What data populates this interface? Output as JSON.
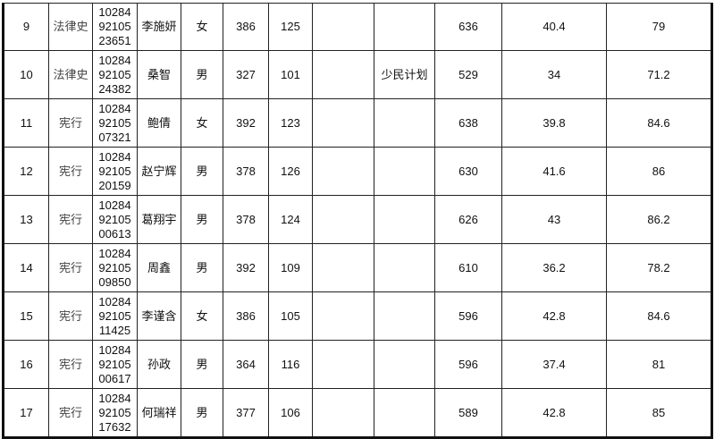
{
  "rows": [
    {
      "no": "9",
      "major": "法律史",
      "id": [
        "10284",
        "92105",
        "23651"
      ],
      "name": "李施妍",
      "gender": "女",
      "score1": "386",
      "score2": "125",
      "blank": "",
      "plan": "",
      "total": "636",
      "c1": "40.4",
      "c2": "79"
    },
    {
      "no": "10",
      "major": "法律史",
      "id": [
        "10284",
        "92105",
        "24382"
      ],
      "name": "桑智",
      "gender": "男",
      "score1": "327",
      "score2": "101",
      "blank": "",
      "plan": "少民计划",
      "total": "529",
      "c1": "34",
      "c2": "71.2"
    },
    {
      "no": "11",
      "major": "宪行",
      "id": [
        "10284",
        "92105",
        "07321"
      ],
      "name": "鲍倩",
      "gender": "女",
      "score1": "392",
      "score2": "123",
      "blank": "",
      "plan": "",
      "total": "638",
      "c1": "39.8",
      "c2": "84.6"
    },
    {
      "no": "12",
      "major": "宪行",
      "id": [
        "10284",
        "92105",
        "20159"
      ],
      "name": "赵宁辉",
      "gender": "男",
      "score1": "378",
      "score2": "126",
      "blank": "",
      "plan": "",
      "total": "630",
      "c1": "41.6",
      "c2": "86"
    },
    {
      "no": "13",
      "major": "宪行",
      "id": [
        "10284",
        "92105",
        "00613"
      ],
      "name": "葛翔宇",
      "gender": "男",
      "score1": "378",
      "score2": "124",
      "blank": "",
      "plan": "",
      "total": "626",
      "c1": "43",
      "c2": "86.2"
    },
    {
      "no": "14",
      "major": "宪行",
      "id": [
        "10284",
        "92105",
        "09850"
      ],
      "name": "周鑫",
      "gender": "男",
      "score1": "392",
      "score2": "109",
      "blank": "",
      "plan": "",
      "total": "610",
      "c1": "36.2",
      "c2": "78.2"
    },
    {
      "no": "15",
      "major": "宪行",
      "id": [
        "10284",
        "92105",
        "11425"
      ],
      "name": "李谨含",
      "gender": "女",
      "score1": "386",
      "score2": "105",
      "blank": "",
      "plan": "",
      "total": "596",
      "c1": "42.8",
      "c2": "84.6"
    },
    {
      "no": "16",
      "major": "宪行",
      "id": [
        "10284",
        "92105",
        "00617"
      ],
      "name": "孙政",
      "gender": "男",
      "score1": "364",
      "score2": "116",
      "blank": "",
      "plan": "",
      "total": "596",
      "c1": "37.4",
      "c2": "81"
    },
    {
      "no": "17",
      "major": "宪行",
      "id": [
        "10284",
        "92105",
        "17632"
      ],
      "name": "何瑞祥",
      "gender": "男",
      "score1": "377",
      "score2": "106",
      "blank": "",
      "plan": "",
      "total": "589",
      "c1": "42.8",
      "c2": "85"
    }
  ]
}
